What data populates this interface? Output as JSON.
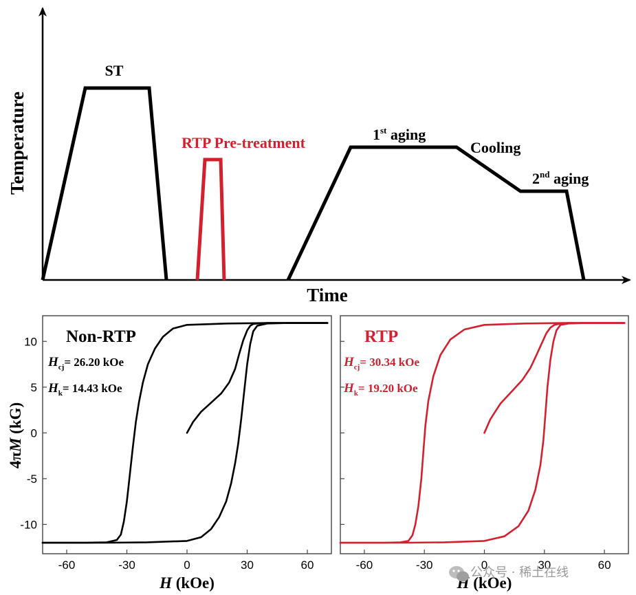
{
  "colors": {
    "black": "#000000",
    "red": "#d3202f",
    "grey_axis": "#444444",
    "watermark": "#9a9a9a"
  },
  "schedule": {
    "xlabel": "Time",
    "ylabel": "Temperature",
    "labels": {
      "st": "ST",
      "rtp": "RTP Pre-treatment",
      "aging1_base": "1",
      "aging1_sup": "st",
      "aging1_rest": " aging",
      "cooling": "Cooling",
      "aging2_base": "2",
      "aging2_sup": "nd",
      "aging2_rest": " aging"
    }
  },
  "chart_data": [
    {
      "type": "line",
      "title": "Non-RTP",
      "xlabel_italic": "H",
      "xlabel_rest": " (kOe)",
      "ylabel_prefix": "4π",
      "ylabel_italic": "M",
      "ylabel_rest": " (kG)",
      "xlim": [
        -72,
        72
      ],
      "ylim": [
        -13.2,
        12.8
      ],
      "xticks": [
        -60,
        -30,
        0,
        30,
        60
      ],
      "yticks": [
        10,
        5,
        0,
        -5,
        -10
      ],
      "ann1": {
        "sym": "H",
        "sub": "cj",
        "text": "= 26.20 kOe"
      },
      "ann2": {
        "sym": "H",
        "sub": "k",
        "text": "= 14.43 kOe"
      },
      "color": "#000000",
      "series": [
        {
          "x": [
            0,
            3,
            7,
            12,
            17,
            21,
            24,
            26,
            28,
            30,
            31.5,
            33,
            35,
            40,
            50,
            70
          ],
          "y": [
            0,
            1.2,
            2.3,
            3.3,
            4.3,
            5.5,
            7,
            8.6,
            10.1,
            11.2,
            11.7,
            11.9,
            11.95,
            12,
            12,
            12
          ]
        },
        {
          "x": [
            70,
            40,
            20,
            0,
            -7,
            -12,
            -16,
            -19.5,
            -22,
            -24,
            -25.5,
            -27,
            -28.5,
            -30,
            -31.5,
            -33,
            -35,
            -40,
            -50,
            -72
          ],
          "y": [
            12,
            12,
            11.95,
            11.8,
            11.4,
            10.5,
            9.2,
            7.5,
            5.5,
            3.3,
            1.2,
            -1.5,
            -4.5,
            -7.5,
            -9.7,
            -11.1,
            -11.7,
            -11.95,
            -12,
            -12
          ]
        },
        {
          "x": [
            -72,
            -40,
            -20,
            0,
            7,
            12,
            16,
            19.5,
            22,
            24,
            25.5,
            27,
            28.5,
            30,
            31.5,
            33,
            35,
            40,
            50,
            70
          ],
          "y": [
            -12,
            -12,
            -11.95,
            -11.8,
            -11.4,
            -10.5,
            -9.2,
            -7.5,
            -5.5,
            -3.3,
            -1.2,
            1.5,
            4.5,
            7.5,
            9.7,
            11.1,
            11.7,
            11.95,
            12,
            12
          ]
        }
      ]
    },
    {
      "type": "line",
      "title": "RTP",
      "xlabel_italic": "H",
      "xlabel_rest": " (kOe)",
      "ylabel_prefix": "",
      "ylabel_italic": "",
      "ylabel_rest": "",
      "xlim": [
        -72,
        72
      ],
      "ylim": [
        -13.2,
        12.8
      ],
      "xticks": [
        -60,
        -30,
        0,
        30,
        60
      ],
      "yticks": [
        10,
        5,
        0,
        -5,
        -10
      ],
      "ann1": {
        "sym": "H",
        "sub": "cj",
        "text": "= 30.34 kOe"
      },
      "ann2": {
        "sym": "H",
        "sub": "k",
        "text": "= 19.20 kOe"
      },
      "color": "#d3202f",
      "series": [
        {
          "x": [
            0,
            3,
            8,
            14,
            19,
            23,
            26,
            28.5,
            31,
            33,
            35,
            38,
            42,
            50,
            70
          ],
          "y": [
            0,
            1.5,
            3.2,
            4.6,
            5.8,
            7.1,
            8.5,
            9.7,
            10.9,
            11.5,
            11.8,
            11.95,
            12,
            12,
            12
          ]
        },
        {
          "x": [
            70,
            40,
            20,
            0,
            -10,
            -17,
            -22,
            -25.5,
            -28,
            -29.5,
            -30.5,
            -31.5,
            -33,
            -34.5,
            -36,
            -38,
            -42,
            -50,
            -72
          ],
          "y": [
            12,
            12,
            11.95,
            11.8,
            11.3,
            10.2,
            8.5,
            6.2,
            3.5,
            0.8,
            -2,
            -5,
            -8,
            -10,
            -11.2,
            -11.8,
            -11.95,
            -12,
            -12
          ]
        },
        {
          "x": [
            -72,
            -40,
            -20,
            0,
            10,
            17,
            22,
            25.5,
            28,
            29.5,
            30.5,
            31.5,
            33,
            34.5,
            36,
            38,
            42,
            50,
            70
          ],
          "y": [
            -12,
            -12,
            -11.95,
            -11.8,
            -11.3,
            -10.2,
            -8.5,
            -6.2,
            -3.5,
            -0.8,
            2,
            5,
            8,
            10,
            11.2,
            11.8,
            11.95,
            12,
            12
          ]
        }
      ]
    }
  ],
  "watermark": {
    "text": "公众号 · 稀土在线",
    "icon": "wechat-icon"
  }
}
